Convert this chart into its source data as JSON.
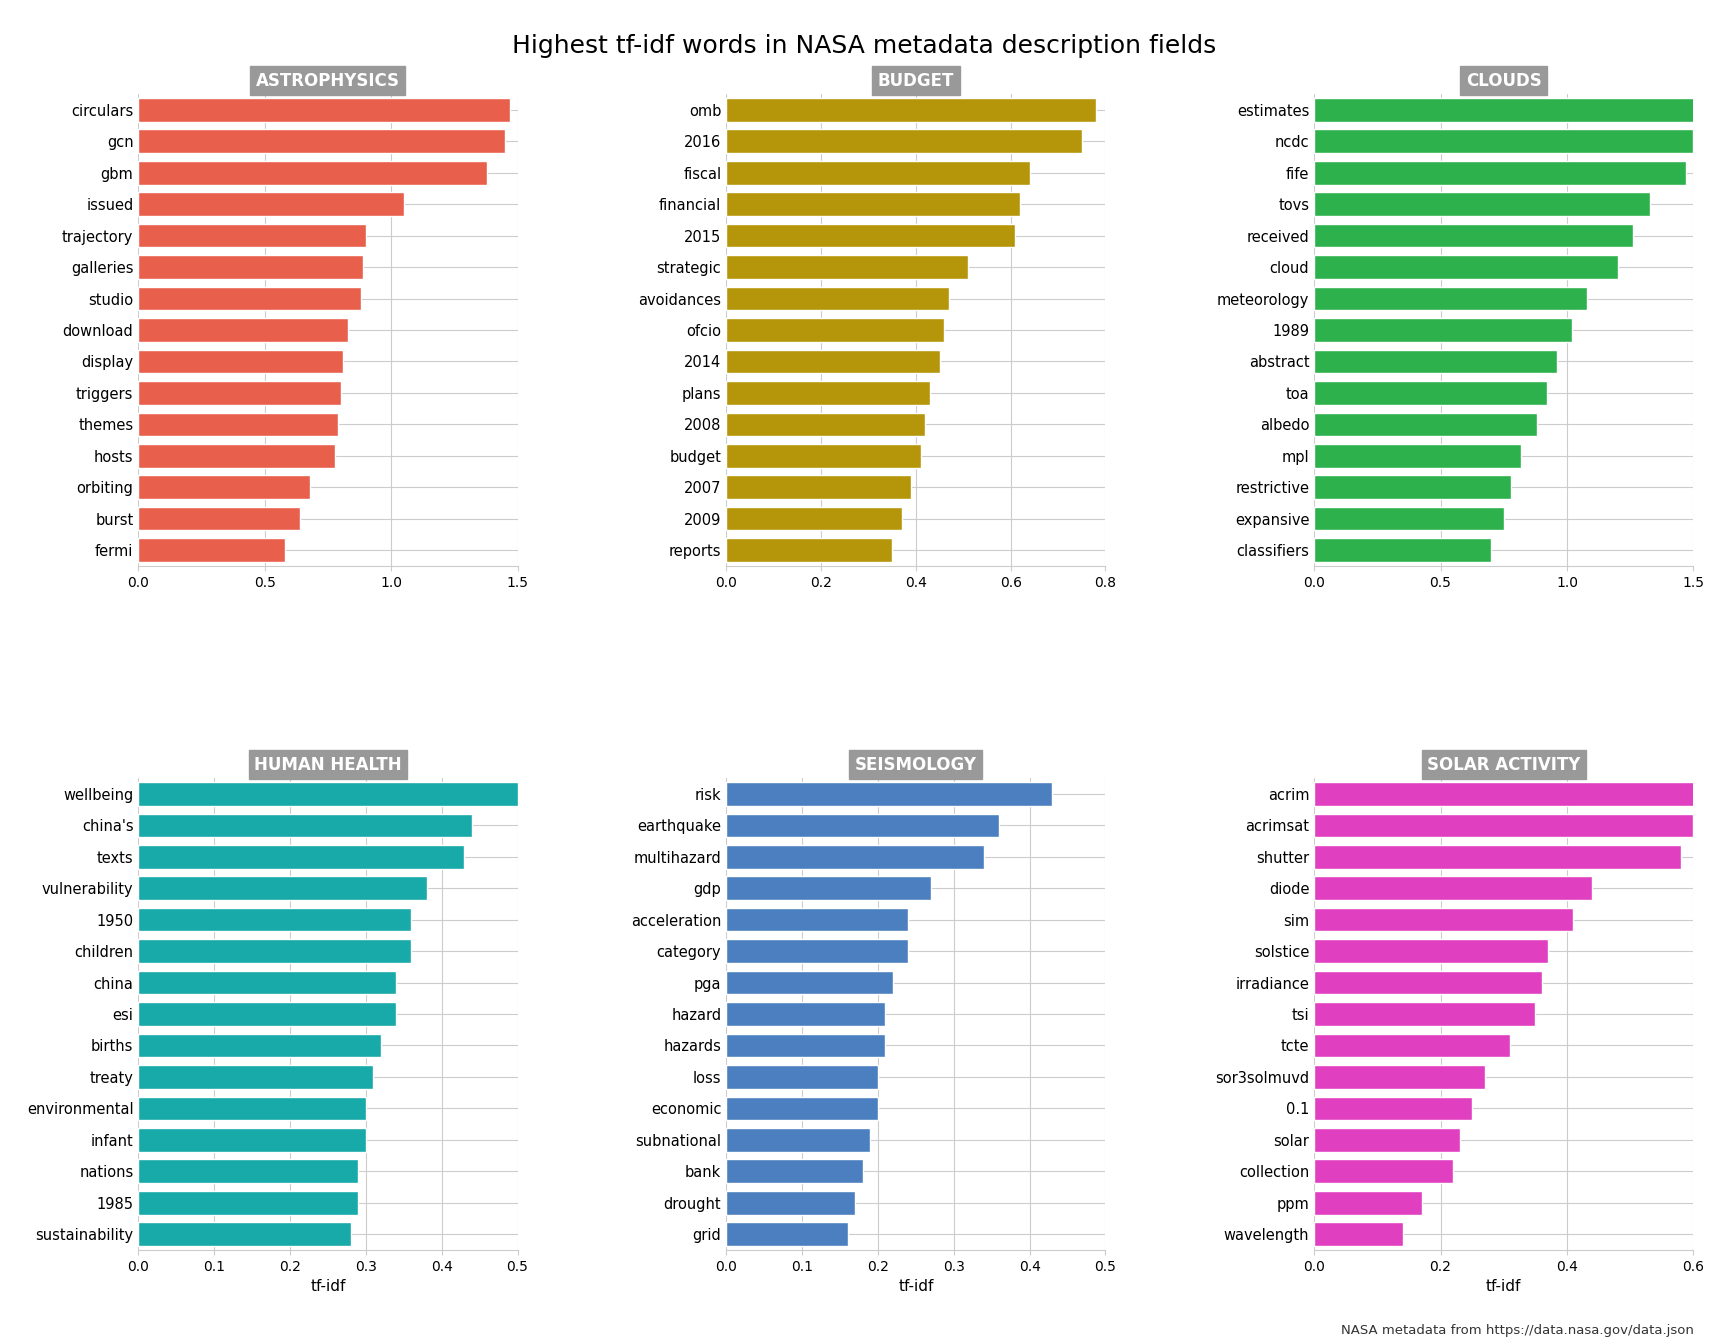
{
  "title": "Highest tf-idf words in NASA metadata description fields",
  "xlabel": "tf-idf",
  "footnote": "NASA metadata from https://data.nasa.gov/data.json",
  "panels": [
    {
      "label": "ASTROPHYSICS",
      "color": "#E8604C",
      "words": [
        "circulars",
        "gcn",
        "gbm",
        "issued",
        "trajectory",
        "galleries",
        "studio",
        "download",
        "display",
        "triggers",
        "themes",
        "hosts",
        "orbiting",
        "burst",
        "fermi"
      ],
      "values": [
        1.47,
        1.45,
        1.38,
        1.05,
        0.9,
        0.89,
        0.88,
        0.83,
        0.81,
        0.8,
        0.79,
        0.78,
        0.68,
        0.64,
        0.58
      ],
      "xlim": [
        0,
        1.5
      ],
      "xticks": [
        0.0,
        0.5,
        1.0,
        1.5
      ]
    },
    {
      "label": "BUDGET",
      "color": "#B5960A",
      "words": [
        "omb",
        "2016",
        "fiscal",
        "financial",
        "2015",
        "strategic",
        "avoidances",
        "ofcio",
        "2014",
        "plans",
        "2008",
        "budget",
        "2007",
        "2009",
        "reports"
      ],
      "values": [
        0.78,
        0.75,
        0.64,
        0.62,
        0.61,
        0.51,
        0.47,
        0.46,
        0.45,
        0.43,
        0.42,
        0.41,
        0.39,
        0.37,
        0.35
      ],
      "xlim": [
        0,
        0.8
      ],
      "xticks": [
        0.0,
        0.2,
        0.4,
        0.6,
        0.8
      ]
    },
    {
      "label": "CLOUDS",
      "color": "#2DB14D",
      "words": [
        "estimates",
        "ncdc",
        "fife",
        "tovs",
        "received",
        "cloud",
        "meteorology",
        "1989",
        "abstract",
        "toa",
        "albedo",
        "mpl",
        "restrictive",
        "expansive",
        "classifiers"
      ],
      "values": [
        1.55,
        1.5,
        1.47,
        1.33,
        1.26,
        1.2,
        1.08,
        1.02,
        0.96,
        0.92,
        0.88,
        0.82,
        0.78,
        0.75,
        0.7
      ],
      "xlim": [
        0,
        1.5
      ],
      "xticks": [
        0.0,
        0.5,
        1.0,
        1.5
      ]
    },
    {
      "label": "HUMAN HEALTH",
      "color": "#18A9A9",
      "words": [
        "wellbeing",
        "china's",
        "texts",
        "vulnerability",
        "1950",
        "children",
        "china",
        "esi",
        "births",
        "treaty",
        "environmental",
        "infant",
        "nations",
        "1985",
        "sustainability"
      ],
      "values": [
        0.5,
        0.44,
        0.43,
        0.38,
        0.36,
        0.36,
        0.34,
        0.34,
        0.32,
        0.31,
        0.3,
        0.3,
        0.29,
        0.29,
        0.28
      ],
      "xlim": [
        0,
        0.5
      ],
      "xticks": [
        0.0,
        0.1,
        0.2,
        0.3,
        0.4,
        0.5
      ]
    },
    {
      "label": "SEISMOLOGY",
      "color": "#4C7FBF",
      "words": [
        "risk",
        "earthquake",
        "multihazard",
        "gdp",
        "acceleration",
        "category",
        "pga",
        "hazard",
        "hazards",
        "loss",
        "economic",
        "subnational",
        "bank",
        "drought",
        "grid"
      ],
      "values": [
        0.43,
        0.36,
        0.34,
        0.27,
        0.24,
        0.24,
        0.22,
        0.21,
        0.21,
        0.2,
        0.2,
        0.19,
        0.18,
        0.17,
        0.16
      ],
      "xlim": [
        0,
        0.5
      ],
      "xticks": [
        0.0,
        0.1,
        0.2,
        0.3,
        0.4,
        0.5
      ]
    },
    {
      "label": "SOLAR ACTIVITY",
      "color": "#E040C0",
      "words": [
        "acrim",
        "acrimsat",
        "shutter",
        "diode",
        "sim",
        "solstice",
        "irradiance",
        "tsi",
        "tcte",
        "sor3solmuvd",
        "0.1",
        "solar",
        "collection",
        "ppm",
        "wavelength"
      ],
      "values": [
        0.62,
        0.6,
        0.58,
        0.44,
        0.41,
        0.37,
        0.36,
        0.35,
        0.31,
        0.27,
        0.25,
        0.23,
        0.22,
        0.17,
        0.14
      ],
      "xlim": [
        0,
        0.6
      ],
      "xticks": [
        0.0,
        0.2,
        0.4,
        0.6
      ]
    }
  ]
}
